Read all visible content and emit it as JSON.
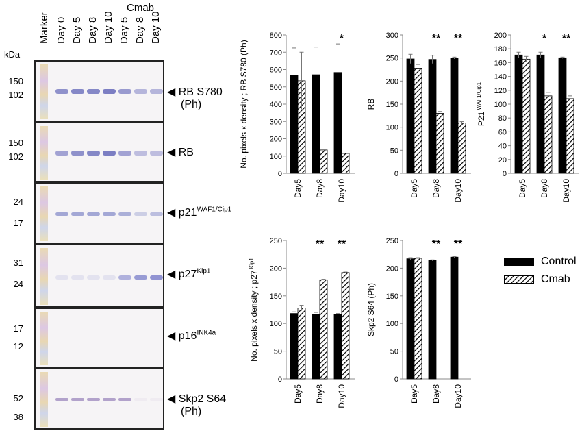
{
  "blot": {
    "kda_label": "kDa",
    "lanes": [
      "Marker",
      "Day 0",
      "Day 5",
      "Day 8",
      "Day 10",
      "Day 5",
      "Day 8",
      "Day 10"
    ],
    "treatment_label": "Cmab",
    "panels": [
      {
        "label": "RB S780",
        "label2": "(Ph)",
        "sup": "",
        "markers": [
          "150",
          "102"
        ]
      },
      {
        "label": "RB",
        "label2": "",
        "sup": "",
        "markers": [
          "150",
          "102"
        ]
      },
      {
        "label": "p21",
        "label2": "",
        "sup": "WAF1/Cip1",
        "markers": [
          "24",
          "17"
        ]
      },
      {
        "label": "p27",
        "label2": "",
        "sup": "Kip1",
        "markers": [
          "31",
          "24"
        ]
      },
      {
        "label": "p16",
        "label2": "",
        "sup": "INK4a",
        "markers": [
          "17",
          "12"
        ]
      },
      {
        "label": "Skp2 S64",
        "label2": "(Ph)",
        "sup": "",
        "markers": [
          "52",
          "38"
        ]
      }
    ]
  },
  "chart_data": [
    {
      "type": "bar",
      "categories": [
        "Day5",
        "Day8",
        "Day10"
      ],
      "series": [
        {
          "name": "Control",
          "values": [
            565,
            570,
            583
          ],
          "errors": [
            160,
            160,
            165
          ]
        },
        {
          "name": "Cmab",
          "values": [
            535,
            135,
            115
          ],
          "errors": [
            165,
            0,
            0
          ]
        }
      ],
      "ylabel": "No. pixels x density ; RB S780 (Ph)",
      "ylabel_sup": "",
      "ylim": [
        0,
        800
      ],
      "yticks": [
        0,
        100,
        200,
        300,
        400,
        500,
        600,
        700,
        800
      ],
      "significance": [
        "",
        "",
        "*"
      ]
    },
    {
      "type": "bar",
      "categories": [
        "Day5",
        "Day8",
        "Day10"
      ],
      "series": [
        {
          "name": "Control",
          "values": [
            248,
            247,
            250
          ],
          "errors": [
            10,
            9,
            2
          ]
        },
        {
          "name": "Cmab",
          "values": [
            228,
            130,
            109
          ],
          "errors": [
            8,
            4,
            3
          ]
        }
      ],
      "ylabel": "RB",
      "ylabel_sup": "",
      "ylim": [
        0,
        300
      ],
      "yticks": [
        0,
        50,
        100,
        150,
        200,
        250,
        300
      ],
      "significance": [
        "",
        "**",
        "**"
      ]
    },
    {
      "type": "bar",
      "categories": [
        "Day5",
        "Day8",
        "Day10"
      ],
      "series": [
        {
          "name": "Control",
          "values": [
            171,
            171,
            167
          ],
          "errors": [
            4,
            4,
            1
          ]
        },
        {
          "name": "Cmab",
          "values": [
            165,
            112,
            108
          ],
          "errors": [
            4,
            5,
            4
          ]
        }
      ],
      "ylabel": "P21",
      "ylabel_sup": "WAF1/Cip1",
      "ylim": [
        0,
        200
      ],
      "yticks": [
        0,
        20,
        40,
        60,
        80,
        100,
        120,
        140,
        160,
        180,
        200
      ],
      "significance": [
        "",
        "*",
        "**"
      ]
    },
    {
      "type": "bar",
      "categories": [
        "Day5",
        "Day8",
        "Day10"
      ],
      "series": [
        {
          "name": "Control",
          "values": [
            118,
            117,
            116
          ],
          "errors": [
            3,
            3,
            2
          ]
        },
        {
          "name": "Cmab",
          "values": [
            128,
            179,
            192
          ],
          "errors": [
            5,
            1,
            1
          ]
        }
      ],
      "ylabel": "No. pixels x density ; p27",
      "ylabel_sup": "Kip1",
      "ylim": [
        0,
        250
      ],
      "yticks": [
        0,
        50,
        100,
        150,
        200,
        250
      ],
      "significance": [
        "",
        "**",
        "**"
      ]
    },
    {
      "type": "bar",
      "categories": [
        "Day5",
        "Day8",
        "Day10"
      ],
      "series": [
        {
          "name": "Control",
          "values": [
            217,
            214,
            220
          ],
          "errors": [
            2,
            1,
            1
          ]
        },
        {
          "name": "Cmab",
          "values": [
            218,
            0,
            0
          ],
          "errors": [
            1,
            0,
            0
          ]
        }
      ],
      "ylabel": "Skp2 S64 (Ph)",
      "ylabel_sup": "",
      "ylim": [
        0,
        250
      ],
      "yticks": [
        0,
        50,
        100,
        150,
        200,
        250
      ],
      "significance": [
        "",
        "**",
        "**"
      ]
    }
  ],
  "legend": {
    "items": [
      "Control",
      "Cmab"
    ]
  },
  "colors": {
    "control": "#000000",
    "axis": "#999999",
    "band_purple": "#3b3fa8"
  }
}
